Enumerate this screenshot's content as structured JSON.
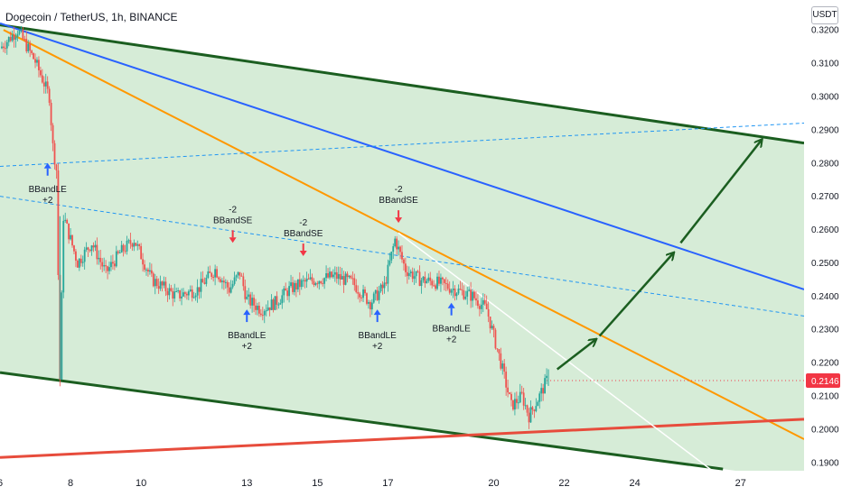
{
  "header": {
    "title": "Dogecoin / TetherUS, 1h, BINANCE",
    "currency": "USDT"
  },
  "colors": {
    "up": "#26a69a",
    "down": "#ef5350",
    "channel_line": "#1b5e20",
    "channel_fill": "#c8e6c9",
    "orange": "#ff9800",
    "blue": "#2962ff",
    "red": "#e74c3c",
    "white_line": "#ffffff",
    "arrow": "#1b5e20",
    "long_marker": "#2962ff",
    "short_marker": "#f23645",
    "price_tag": "#f23645"
  },
  "chart_data": {
    "type": "line",
    "title": "Dogecoin / TetherUS, 1h, BINANCE",
    "y_range": [
      0.1875,
      0.329
    ],
    "y_ticks": [
      "0.3200",
      "0.3100",
      "0.3000",
      "0.2900",
      "0.2800",
      "0.2700",
      "0.2600",
      "0.2500",
      "0.2400",
      "0.2300",
      "0.2200",
      "0.2100",
      "0.2000",
      "0.1900"
    ],
    "y_tick_values": [
      0.32,
      0.31,
      0.3,
      0.29,
      0.28,
      0.27,
      0.26,
      0.25,
      0.24,
      0.23,
      0.22,
      0.21,
      0.2,
      0.19
    ],
    "x_range": [
      6.0,
      28.8
    ],
    "x_ticks": [
      "6",
      "8",
      "10",
      "13",
      "15",
      "17",
      "20",
      "22",
      "24",
      "27"
    ],
    "x_tick_values": [
      6.0,
      8.0,
      10.0,
      13.0,
      15.0,
      17.0,
      20.0,
      22.0,
      24.0,
      27.0
    ],
    "current_price": {
      "label": "0.2146",
      "value": 0.2146
    },
    "price_path": [
      [
        6.0,
        0.3145
      ],
      [
        6.5,
        0.32
      ],
      [
        7.0,
        0.3105
      ],
      [
        7.4,
        0.3
      ],
      [
        7.5,
        0.285
      ],
      [
        7.6,
        0.278
      ],
      [
        7.7,
        0.215
      ],
      [
        7.8,
        0.264
      ],
      [
        8.2,
        0.25
      ],
      [
        8.6,
        0.256
      ],
      [
        9.0,
        0.247
      ],
      [
        9.4,
        0.253
      ],
      [
        9.8,
        0.257
      ],
      [
        10.3,
        0.245
      ],
      [
        11.0,
        0.24
      ],
      [
        11.6,
        0.242
      ],
      [
        12.1,
        0.248
      ],
      [
        12.5,
        0.242
      ],
      [
        12.8,
        0.247
      ],
      [
        13.0,
        0.239
      ],
      [
        13.4,
        0.236
      ],
      [
        13.8,
        0.238
      ],
      [
        14.2,
        0.242
      ],
      [
        14.6,
        0.244
      ],
      [
        15.0,
        0.245
      ],
      [
        15.5,
        0.246
      ],
      [
        16.0,
        0.244
      ],
      [
        16.5,
        0.238
      ],
      [
        16.9,
        0.243
      ],
      [
        17.2,
        0.257
      ],
      [
        17.5,
        0.248
      ],
      [
        17.9,
        0.245
      ],
      [
        18.4,
        0.244
      ],
      [
        18.9,
        0.242
      ],
      [
        19.4,
        0.24
      ],
      [
        19.8,
        0.236
      ],
      [
        20.2,
        0.22
      ],
      [
        20.5,
        0.207
      ],
      [
        20.8,
        0.21
      ],
      [
        21.0,
        0.204
      ],
      [
        21.3,
        0.21
      ],
      [
        21.5,
        0.2146
      ]
    ],
    "lines": [
      {
        "name": "upper channel",
        "color": "#1b5e20",
        "points": [
          [
            6.0,
            0.3215
          ],
          [
            28.8,
            0.286
          ]
        ]
      },
      {
        "name": "lower channel",
        "color": "#1b5e20",
        "points": [
          [
            6.0,
            0.217
          ],
          [
            26.5,
            0.188
          ]
        ]
      },
      {
        "name": "orange trendline",
        "color": "#ff9800",
        "points": [
          [
            6.1,
            0.32
          ],
          [
            28.8,
            0.197
          ]
        ]
      },
      {
        "name": "blue trendline",
        "color": "#2962ff",
        "points": [
          [
            6.0,
            0.322
          ],
          [
            28.8,
            0.242
          ]
        ]
      },
      {
        "name": "red support",
        "color": "#e74c3c",
        "points": [
          [
            6.0,
            0.1915
          ],
          [
            28.8,
            0.203
          ]
        ]
      },
      {
        "name": "white trendline",
        "color": "#ffffff",
        "points": [
          [
            17.3,
            0.259
          ],
          [
            26.2,
            0.1875
          ]
        ]
      },
      {
        "name": "upper dashed",
        "color": "#2196f3",
        "points": [
          [
            6.0,
            0.279
          ],
          [
            28.8,
            0.292
          ]
        ]
      },
      {
        "name": "lower dashed",
        "color": "#2196f3",
        "points": [
          [
            6.0,
            0.27
          ],
          [
            28.8,
            0.234
          ]
        ]
      }
    ],
    "projection_arrows": [
      {
        "from": [
          21.8,
          0.218
        ],
        "to": [
          22.9,
          0.227
        ]
      },
      {
        "from": [
          23.0,
          0.228
        ],
        "to": [
          25.1,
          0.253
        ]
      },
      {
        "from": [
          25.3,
          0.256
        ],
        "to": [
          27.6,
          0.287
        ]
      }
    ],
    "signals": [
      {
        "type": "long",
        "label": "BBandLE",
        "amount": "+2",
        "x": 7.35,
        "y": 0.28
      },
      {
        "type": "short",
        "label": "BBandSE",
        "amount": "-2",
        "x": 12.6,
        "y": 0.256
      },
      {
        "type": "short",
        "label": "BBandSE",
        "amount": "-2",
        "x": 14.6,
        "y": 0.252
      },
      {
        "type": "long",
        "label": "BBandLE",
        "amount": "+2",
        "x": 13.0,
        "y": 0.236
      },
      {
        "type": "short",
        "label": "BBandSE",
        "amount": "-2",
        "x": 17.3,
        "y": 0.262
      },
      {
        "type": "long",
        "label": "BBandLE",
        "amount": "+2",
        "x": 16.7,
        "y": 0.236
      },
      {
        "type": "long",
        "label": "BBandLE",
        "amount": "+2",
        "x": 18.8,
        "y": 0.238
      }
    ],
    "grid": false,
    "legend": "none"
  }
}
